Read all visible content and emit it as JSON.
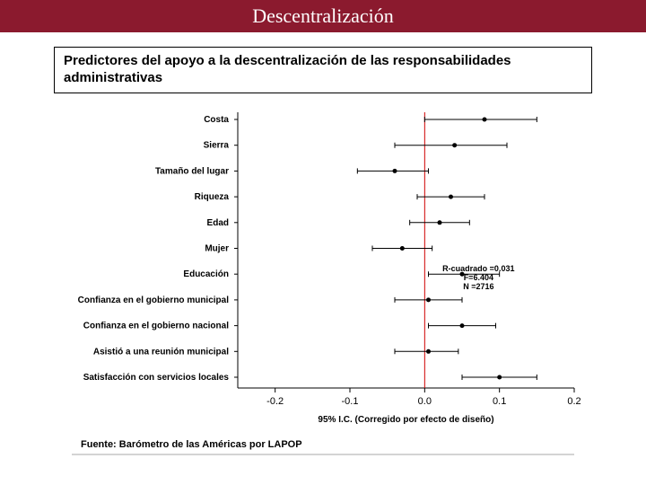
{
  "header": {
    "title": "Descentralización"
  },
  "subtitle": {
    "text": "Predictores del apoyo a la descentralización de las responsabilidades administrativas"
  },
  "chart": {
    "type": "forest",
    "xlim": [
      -0.25,
      0.2
    ],
    "xticks": [
      -0.2,
      -0.1,
      0.0,
      0.1,
      0.2
    ],
    "xtick_labels": [
      "-0.2",
      "-0.1",
      "0.0",
      "0.1",
      "0.2"
    ],
    "zero_line": 0.0,
    "zero_line_color": "#d00000",
    "axis_color": "#000000",
    "background_color": "#ffffff",
    "point_color": "#000000",
    "label_fontsize": 10,
    "tick_fontsize": 11,
    "legend": "95% I.C. (Corregido por efecto de diseño)",
    "source": "Fuente: Barómetro de las Américas por LAPOP",
    "stats": [
      "R-cuadrado =0.031",
      "F=6.404",
      "N =2716"
    ],
    "rows": [
      {
        "label": "Costa",
        "lo": 0.0,
        "pt": 0.08,
        "hi": 0.15
      },
      {
        "label": "Sierra",
        "lo": -0.04,
        "pt": 0.04,
        "hi": 0.11
      },
      {
        "label": "Tamaño del lugar",
        "lo": -0.09,
        "pt": -0.04,
        "hi": 0.005
      },
      {
        "label": "Riqueza",
        "lo": -0.01,
        "pt": 0.035,
        "hi": 0.08
      },
      {
        "label": "Edad",
        "lo": -0.02,
        "pt": 0.02,
        "hi": 0.06
      },
      {
        "label": "Mujer",
        "lo": -0.07,
        "pt": -0.03,
        "hi": 0.01
      },
      {
        "label": "Educación",
        "lo": 0.005,
        "pt": 0.05,
        "hi": 0.1
      },
      {
        "label": "Confianza en el gobierno municipal",
        "lo": -0.04,
        "pt": 0.005,
        "hi": 0.05
      },
      {
        "label": "Confianza en el gobierno nacional",
        "lo": 0.005,
        "pt": 0.05,
        "hi": 0.095
      },
      {
        "label": "Asistió a una reunión municipal",
        "lo": -0.04,
        "pt": 0.005,
        "hi": 0.045
      },
      {
        "label": "Satisfacción con servicios locales",
        "lo": 0.05,
        "pt": 0.1,
        "hi": 0.15
      }
    ]
  }
}
